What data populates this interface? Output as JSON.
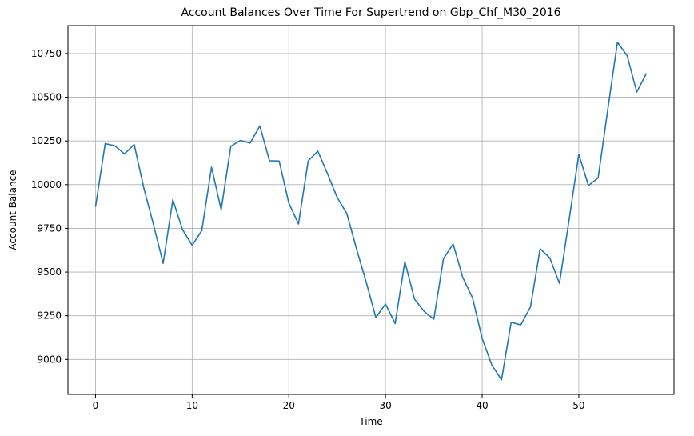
{
  "chart_data": {
    "type": "line",
    "title": "Account Balances Over Time For Supertrend on Gbp_Chf_M30_2016",
    "xlabel": "Time",
    "ylabel": "Account Balance",
    "xlim": [
      -2.85,
      59.85
    ],
    "ylim": [
      8800,
      10910
    ],
    "x_ticks": [
      0,
      10,
      20,
      30,
      40,
      50
    ],
    "x_tick_labels": [
      "0",
      "10",
      "20",
      "30",
      "40",
      "50"
    ],
    "y_ticks": [
      9000,
      9250,
      9500,
      9750,
      10000,
      10250,
      10500,
      10750
    ],
    "y_tick_labels": [
      "9000",
      "9250",
      "9500",
      "9750",
      "10000",
      "10250",
      "10500",
      "10750"
    ],
    "grid": true,
    "line_color": "#1f77b4",
    "grid_color": "#b0b0b0",
    "series": [
      {
        "x": [
          0,
          1,
          2,
          3,
          4,
          5,
          6,
          7,
          8,
          9,
          10,
          11,
          12,
          13,
          14,
          15,
          16,
          17,
          18,
          19,
          20,
          21,
          22,
          23,
          24,
          25,
          26,
          27,
          28,
          29,
          30,
          31,
          32,
          33,
          34,
          35,
          36,
          37,
          38,
          39,
          40,
          41,
          42,
          43,
          44,
          45,
          46,
          47,
          48,
          49,
          50,
          51,
          52,
          53,
          54,
          55,
          56,
          57
        ],
        "values": [
          9873,
          10235,
          10222,
          10176,
          10230,
          9980,
          9771,
          9550,
          9914,
          9743,
          9653,
          9738,
          10100,
          9857,
          10220,
          10253,
          10238,
          10336,
          10137,
          10135,
          9895,
          9775,
          10135,
          10192,
          10063,
          9927,
          9835,
          9633,
          9443,
          9240,
          9317,
          9205,
          9560,
          9345,
          9275,
          9230,
          9577,
          9660,
          9468,
          9353,
          9120,
          8968,
          8883,
          9212,
          9198,
          9300,
          9633,
          9581,
          9435,
          9800,
          10173,
          9995,
          10038,
          10430,
          10815,
          10738,
          10530,
          10637
        ]
      }
    ]
  }
}
